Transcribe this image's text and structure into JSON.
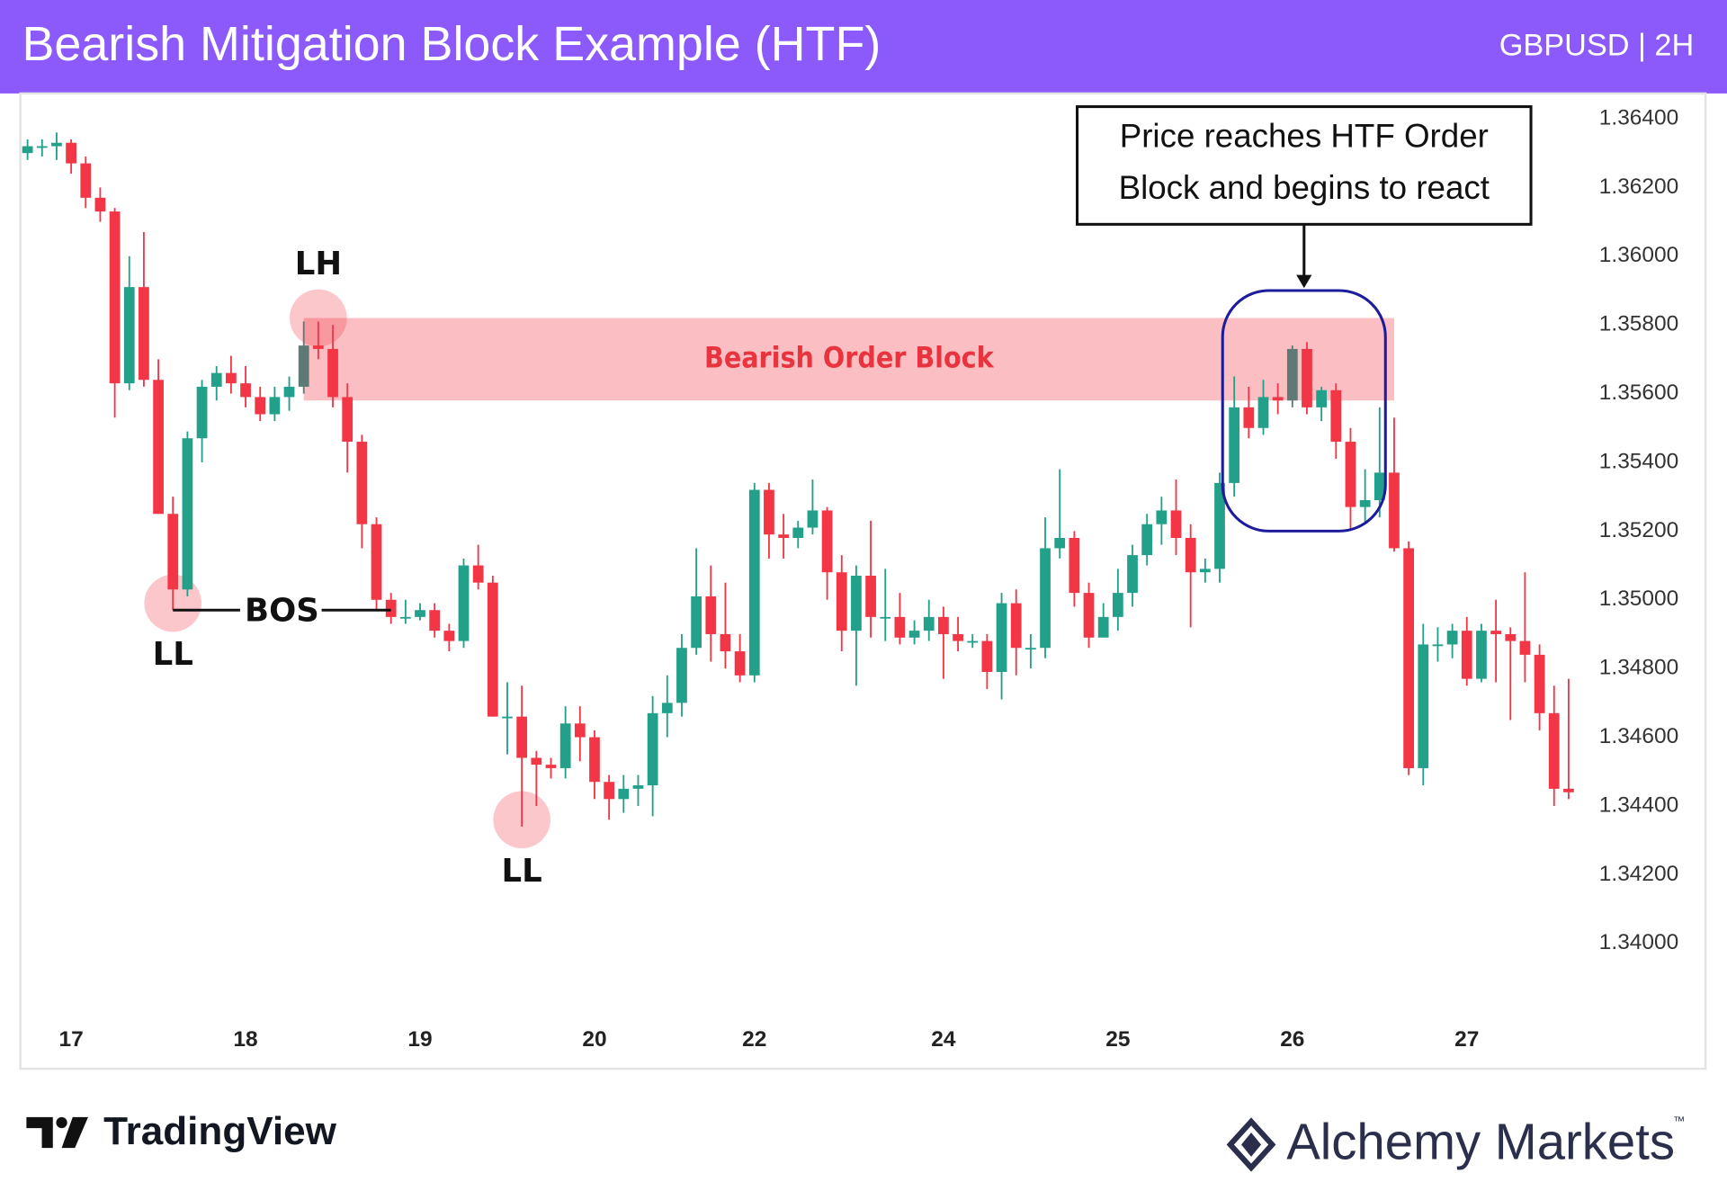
{
  "chart_data": {
    "type": "candlestick",
    "title": "Bearish Mitigation Block Example (HTF)",
    "subtitle": "GBPUSD | 2H",
    "up_color": "#22a08a",
    "down_color": "#f23645",
    "highlight_color": "#5f7a74",
    "highlighted": [
      19,
      87
    ],
    "grid": false,
    "xlim": [
      -0.5,
      106.5
    ],
    "xticks": [
      {
        "value": 3,
        "label": "17"
      },
      {
        "value": 15,
        "label": "18"
      },
      {
        "value": 27,
        "label": "19"
      },
      {
        "value": 39,
        "label": "20"
      },
      {
        "value": 50,
        "label": "22"
      },
      {
        "value": 63,
        "label": "24"
      },
      {
        "value": 75,
        "label": "25"
      },
      {
        "value": 87,
        "label": "26"
      },
      {
        "value": 99,
        "label": "27"
      }
    ],
    "ylim": [
      1.3364,
      1.3647
    ],
    "yticks": [
      {
        "value": 1.364,
        "label": "1.36400"
      },
      {
        "value": 1.362,
        "label": "1.36200"
      },
      {
        "value": 1.36,
        "label": "1.36000"
      },
      {
        "value": 1.358,
        "label": "1.35800"
      },
      {
        "value": 1.356,
        "label": "1.35600"
      },
      {
        "value": 1.354,
        "label": "1.35400"
      },
      {
        "value": 1.352,
        "label": "1.35200"
      },
      {
        "value": 1.35,
        "label": "1.35000"
      },
      {
        "value": 1.348,
        "label": "1.34800"
      },
      {
        "value": 1.346,
        "label": "1.34600"
      },
      {
        "value": 1.344,
        "label": "1.34400"
      },
      {
        "value": 1.342,
        "label": "1.34200"
      },
      {
        "value": 1.34,
        "label": "1.34000"
      }
    ],
    "open": [
      1.363,
      1.3632,
      1.3632,
      1.3633,
      1.3627,
      1.3617,
      1.3613,
      1.3563,
      1.3591,
      1.3564,
      1.3525,
      1.3503,
      1.3547,
      1.3562,
      1.3566,
      1.3563,
      1.3559,
      1.3554,
      1.3559,
      1.3562,
      1.3574,
      1.3573,
      1.3559,
      1.3546,
      1.3522,
      1.35,
      1.3495,
      1.3495,
      1.3497,
      1.3491,
      1.3488,
      1.351,
      1.3505,
      1.3466,
      1.3466,
      1.3454,
      1.3452,
      1.3451,
      1.3464,
      1.346,
      1.3447,
      1.3442,
      1.3445,
      1.3446,
      1.3467,
      1.347,
      1.3486,
      1.3501,
      1.349,
      1.3485,
      1.3478,
      1.3532,
      1.3519,
      1.3518,
      1.3521,
      1.3526,
      1.3508,
      1.3491,
      1.3507,
      1.3495,
      1.3495,
      1.3489,
      1.3491,
      1.3495,
      1.349,
      1.3488,
      1.3488,
      1.3479,
      1.3499,
      1.3486,
      1.3486,
      1.3515,
      1.3518,
      1.3502,
      1.3489,
      1.3495,
      1.3502,
      1.3513,
      1.3522,
      1.3526,
      1.3518,
      1.3508,
      1.3509,
      1.3534,
      1.3556,
      1.355,
      1.3559,
      1.3558,
      1.3573,
      1.3556,
      1.3561,
      1.3546,
      1.3527,
      1.3529,
      1.3537,
      1.3515,
      1.3451,
      1.3487,
      1.3487,
      1.3491,
      1.3477,
      1.3491,
      1.349,
      1.3488,
      1.3484,
      1.3467,
      1.3445
    ],
    "high": [
      1.3634,
      1.3634,
      1.3636,
      1.3634,
      1.3629,
      1.362,
      1.3614,
      1.36,
      1.3607,
      1.357,
      1.353,
      1.3549,
      1.3564,
      1.3568,
      1.3571,
      1.3568,
      1.3562,
      1.3562,
      1.3565,
      1.3581,
      1.3581,
      1.358,
      1.3563,
      1.3548,
      1.3524,
      1.3502,
      1.35,
      1.3499,
      1.3499,
      1.3493,
      1.3512,
      1.3516,
      1.3507,
      1.3476,
      1.3475,
      1.3456,
      1.3454,
      1.3469,
      1.3469,
      1.3462,
      1.3449,
      1.3449,
      1.3449,
      1.3472,
      1.3478,
      1.349,
      1.3515,
      1.351,
      1.3505,
      1.349,
      1.3534,
      1.3534,
      1.3525,
      1.3523,
      1.3535,
      1.3527,
      1.3513,
      1.351,
      1.3523,
      1.3509,
      1.3502,
      1.3494,
      1.35,
      1.3498,
      1.3495,
      1.349,
      1.349,
      1.3502,
      1.3503,
      1.349,
      1.3524,
      1.3538,
      1.352,
      1.3505,
      1.3499,
      1.3509,
      1.3516,
      1.3525,
      1.353,
      1.3535,
      1.3522,
      1.3512,
      1.3537,
      1.3565,
      1.3562,
      1.3564,
      1.3563,
      1.3574,
      1.3575,
      1.3562,
      1.3563,
      1.355,
      1.3538,
      1.3556,
      1.3553,
      1.3517,
      1.3493,
      1.3492,
      1.3493,
      1.3495,
      1.3493,
      1.35,
      1.3492,
      1.3508,
      1.3487,
      1.3475,
      1.3477
    ],
    "low": [
      1.3628,
      1.3629,
      1.3628,
      1.3624,
      1.3614,
      1.361,
      1.3553,
      1.3561,
      1.3562,
      1.3525,
      1.3497,
      1.3501,
      1.354,
      1.3558,
      1.356,
      1.3556,
      1.3552,
      1.3552,
      1.3555,
      1.356,
      1.357,
      1.3556,
      1.3537,
      1.3515,
      1.3497,
      1.3493,
      1.3493,
      1.3494,
      1.3489,
      1.3485,
      1.3486,
      1.3503,
      1.3466,
      1.3455,
      1.3434,
      1.344,
      1.3448,
      1.3448,
      1.3453,
      1.3442,
      1.3436,
      1.3438,
      1.344,
      1.3437,
      1.346,
      1.3466,
      1.3484,
      1.3482,
      1.348,
      1.3476,
      1.3476,
      1.3512,
      1.3512,
      1.3515,
      1.3519,
      1.35,
      1.3485,
      1.3475,
      1.3489,
      1.3488,
      1.3487,
      1.3487,
      1.3488,
      1.3477,
      1.3485,
      1.3486,
      1.3474,
      1.3471,
      1.3478,
      1.348,
      1.3483,
      1.3512,
      1.3498,
      1.3486,
      1.349,
      1.3491,
      1.3498,
      1.351,
      1.3516,
      1.3513,
      1.3492,
      1.3505,
      1.3505,
      1.353,
      1.3547,
      1.3548,
      1.3554,
      1.3556,
      1.3554,
      1.3552,
      1.3541,
      1.352,
      1.3522,
      1.3524,
      1.3514,
      1.3449,
      1.3446,
      1.3482,
      1.3483,
      1.3475,
      1.3476,
      1.3476,
      1.3465,
      1.3476,
      1.3462,
      1.344,
      1.3442
    ],
    "close": [
      1.3632,
      1.3632,
      1.3633,
      1.3627,
      1.3617,
      1.3613,
      1.3563,
      1.3591,
      1.3564,
      1.3525,
      1.3503,
      1.3547,
      1.3562,
      1.3566,
      1.3563,
      1.3559,
      1.3554,
      1.3559,
      1.3562,
      1.3574,
      1.3573,
      1.3559,
      1.3546,
      1.3522,
      1.35,
      1.3495,
      1.3495,
      1.3497,
      1.3491,
      1.3488,
      1.351,
      1.3505,
      1.3466,
      1.3466,
      1.3454,
      1.3452,
      1.3451,
      1.3464,
      1.346,
      1.3447,
      1.3442,
      1.3445,
      1.3446,
      1.3467,
      1.347,
      1.3486,
      1.3501,
      1.349,
      1.3485,
      1.3478,
      1.3532,
      1.3519,
      1.3518,
      1.3521,
      1.3526,
      1.3508,
      1.3491,
      1.3507,
      1.3495,
      1.3495,
      1.3489,
      1.3491,
      1.3495,
      1.349,
      1.3488,
      1.3488,
      1.3479,
      1.3499,
      1.3486,
      1.3486,
      1.3515,
      1.3518,
      1.3502,
      1.3489,
      1.3495,
      1.3502,
      1.3513,
      1.3522,
      1.3526,
      1.3518,
      1.3508,
      1.3509,
      1.3534,
      1.3556,
      1.355,
      1.3559,
      1.3558,
      1.3573,
      1.3556,
      1.3561,
      1.3546,
      1.3527,
      1.3529,
      1.3537,
      1.3515,
      1.3451,
      1.3487,
      1.3487,
      1.3491,
      1.3477,
      1.3491,
      1.349,
      1.3488,
      1.3484,
      1.3467,
      1.3445,
      1.3444
    ],
    "order_block": {
      "label": "Bearish Order Block",
      "color": "#f23645",
      "top": 1.3582,
      "bottom": 1.3558,
      "start": 19,
      "end": 94
    },
    "mitigation_box": {
      "color": "#1c1c9c",
      "start": 82.2,
      "end": 93.4,
      "top": 1.359,
      "bottom": 1.352
    },
    "annotations": [
      {
        "text": "LH",
        "x": 20,
        "y": 1.3582,
        "side": "above"
      },
      {
        "text": "LL",
        "x": 10,
        "y": 1.3499,
        "side": "below"
      },
      {
        "text": "LL",
        "x": 34,
        "y": 1.3436,
        "side": "below"
      }
    ],
    "bos": {
      "text": "BOS",
      "start": 10,
      "end": 25,
      "y": 1.3497
    },
    "callout": {
      "lines": [
        "Price reaches HTF Order",
        "Block and begins to react"
      ]
    }
  },
  "footer": {
    "left_logo": "TradingView",
    "right_logo": "Alchemy Markets",
    "trademark": "™"
  }
}
